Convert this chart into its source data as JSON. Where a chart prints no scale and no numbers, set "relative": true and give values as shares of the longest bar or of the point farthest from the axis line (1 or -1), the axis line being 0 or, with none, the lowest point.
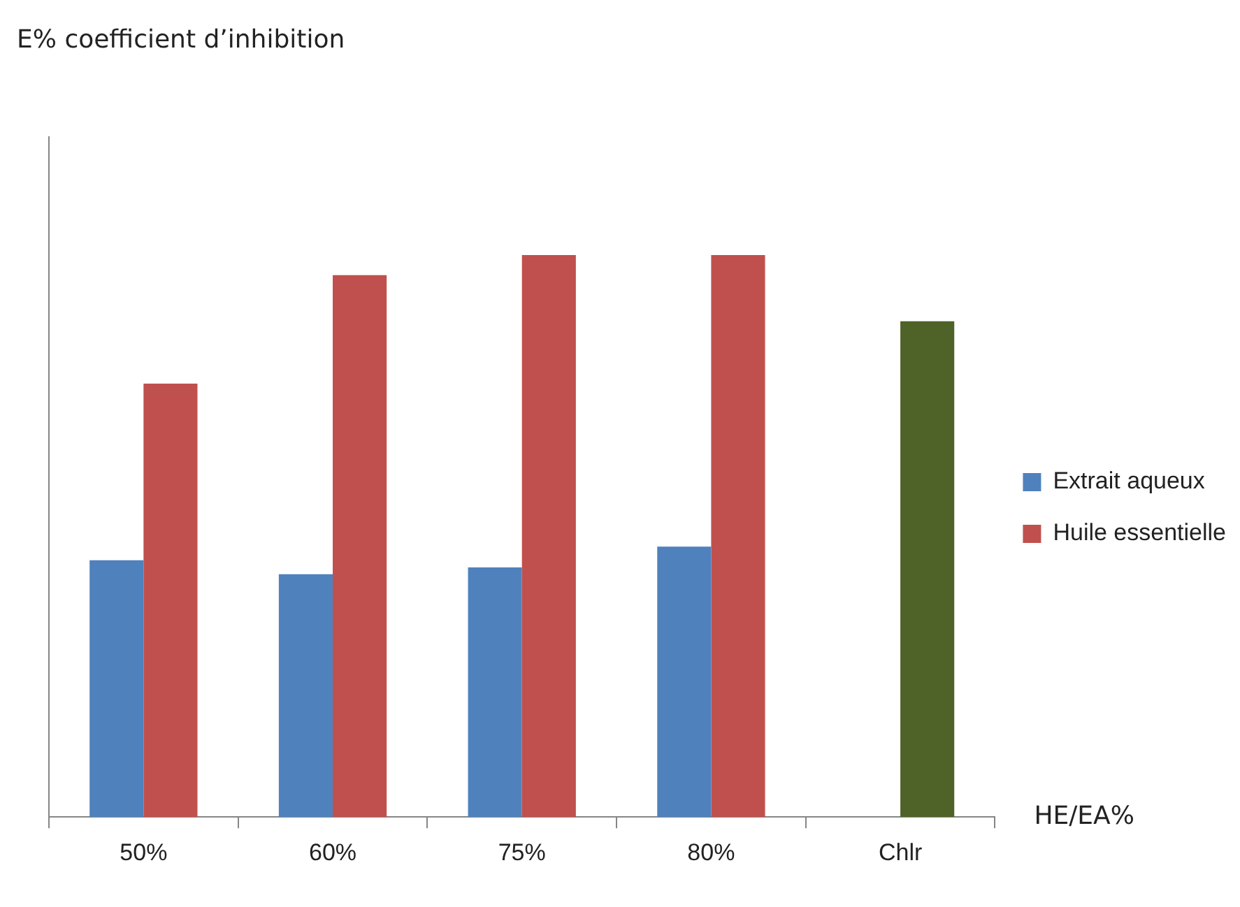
{
  "chart_data": {
    "type": "bar",
    "relative": true,
    "annotations": [
      "E% coefficient d’inhibition"
    ],
    "xlabel": "HE/EA%",
    "categories": [
      "50%",
      "60%",
      "75%",
      "80%",
      "Chlr"
    ],
    "series": [
      {
        "name": "Extrait aqueux",
        "color": "#4f81bd",
        "values": [
          0.457,
          0.432,
          0.444,
          0.481,
          null
        ]
      },
      {
        "name": "Huile essentielle",
        "color": "#c0504d",
        "colors": [
          "#c0504d",
          "#c0504d",
          "#c0504d",
          "#c0504d",
          "#4f6228"
        ],
        "values": [
          0.771,
          0.964,
          1,
          1,
          0.882
        ]
      }
    ],
    "grid": false,
    "legend": "right"
  }
}
